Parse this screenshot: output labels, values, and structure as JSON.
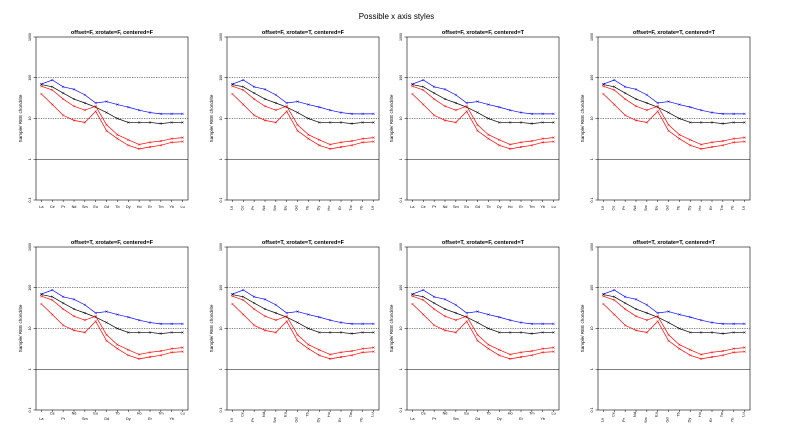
{
  "figure_title": "Possible x axis styles",
  "chart_data": {
    "type": "line",
    "ylabel": "Sample/ REE chondrite",
    "y_scale": "log",
    "ylim": [
      0.1,
      1000
    ],
    "y_tick_labels": [
      "0.1",
      "1",
      "10",
      "100",
      "1000"
    ],
    "y_ticks": [
      0.1,
      1,
      10,
      100,
      1000
    ],
    "reference_lines": [
      1,
      10,
      100
    ],
    "categories": [
      "La",
      "Ce",
      "Pr",
      "Nd",
      "Sm",
      "Eu",
      "Gd",
      "Tb",
      "Dy",
      "Ho",
      "Er",
      "Tm",
      "Yb",
      "Lu"
    ],
    "series": [
      {
        "color": "#0000ff",
        "values": [
          70,
          88,
          60,
          52,
          38,
          24,
          26,
          22,
          19,
          16,
          14,
          13,
          13,
          13
        ]
      },
      {
        "color": "#000000",
        "values": [
          68,
          60,
          42,
          30,
          24,
          19,
          14,
          10,
          8,
          8,
          8,
          7.5,
          8,
          8
        ]
      },
      {
        "color": "#ff0000",
        "values": [
          62,
          50,
          30,
          20,
          16,
          20,
          7,
          4,
          3,
          2.3,
          2.6,
          2.8,
          3.2,
          3.4
        ]
      },
      {
        "color": "#ff0000",
        "values": [
          40,
          22,
          12,
          9,
          8,
          15,
          5,
          3.2,
          2.2,
          1.8,
          2,
          2.2,
          2.6,
          2.7
        ]
      }
    ],
    "panels": [
      {
        "title": "offset=F, xrotate=F, centered=F",
        "offset": false,
        "xrotate": false,
        "centered": false
      },
      {
        "title": "offset=F, xrotate=T, centered=F",
        "offset": false,
        "xrotate": true,
        "centered": false
      },
      {
        "title": "offset=F, xrotate=F, centered=T",
        "offset": false,
        "xrotate": false,
        "centered": true
      },
      {
        "title": "offset=F, xrotate=T, centered=T",
        "offset": false,
        "xrotate": true,
        "centered": true
      },
      {
        "title": "offset=T, xrotate=F, centered=F",
        "offset": true,
        "xrotate": false,
        "centered": false
      },
      {
        "title": "offset=T, xrotate=T, centered=F",
        "offset": true,
        "xrotate": true,
        "centered": false
      },
      {
        "title": "offset=T, xrotate=F, centered=T",
        "offset": true,
        "xrotate": false,
        "centered": true
      },
      {
        "title": "offset=T, xrotate=T, centered=T",
        "offset": true,
        "xrotate": true,
        "centered": true
      }
    ]
  }
}
